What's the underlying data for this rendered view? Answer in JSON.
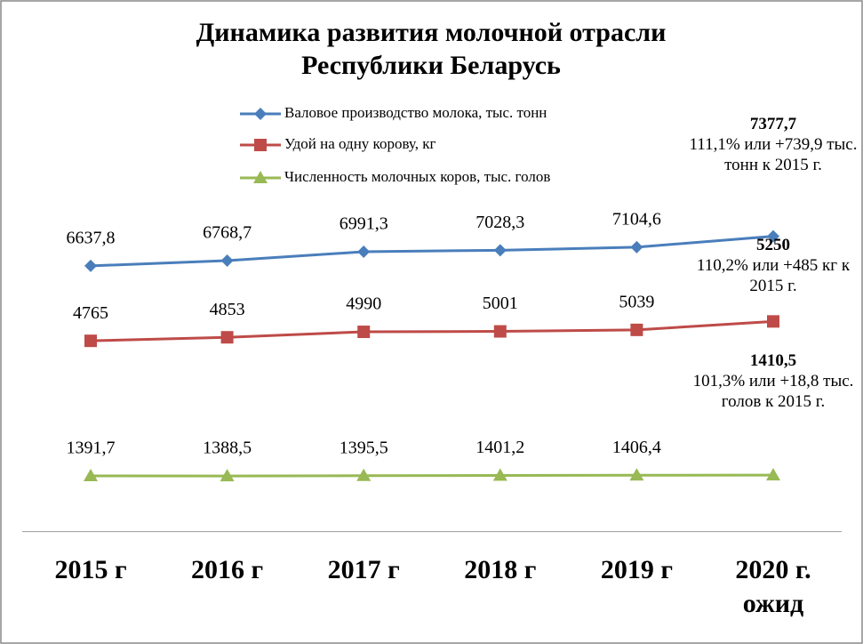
{
  "chart_data": {
    "type": "line",
    "title": "Динамика развития молочной отрасли Республики Беларусь",
    "categories": [
      "2015 г",
      "2016 г",
      "2017 г",
      "2018 г",
      "2019 г",
      "2020 г. ожид"
    ],
    "ylim": [
      0,
      12000
    ],
    "legend": "top",
    "series": [
      {
        "name": "Валовое производство молока, тыс. тонн",
        "color": "#4a7ebb",
        "marker": "diamond",
        "values": [
          6637.8,
          6768.7,
          6991.3,
          7028.3,
          7104.6,
          7377.7
        ],
        "value_labels": [
          "6637,8",
          "6768,7",
          "6991,3",
          "7028,3",
          "7104,6",
          "7377,7"
        ],
        "annotation": "111,1% или +739,9 тыс. тонн к 2015 г."
      },
      {
        "name": "Удой на одну корову, кг",
        "color": "#be4b48",
        "marker": "square",
        "values": [
          4765,
          4853,
          4990,
          5001,
          5039,
          5250
        ],
        "value_labels": [
          "4765",
          "4853",
          "4990",
          "5001",
          "5039",
          "5250"
        ],
        "annotation": "110,2% или +485 кг к 2015 г."
      },
      {
        "name": "Численность молочных коров, тыс. голов",
        "color": "#98b954",
        "marker": "triangle",
        "values": [
          1391.7,
          1388.5,
          1395.5,
          1401.2,
          1406.4,
          1410.5
        ],
        "value_labels": [
          "1391,7",
          "1388,5",
          "1395,5",
          "1401,2",
          "1406,4",
          "1410,5"
        ],
        "annotation": "101,3% или +18,8 тыс. голов к 2015 г."
      }
    ]
  }
}
